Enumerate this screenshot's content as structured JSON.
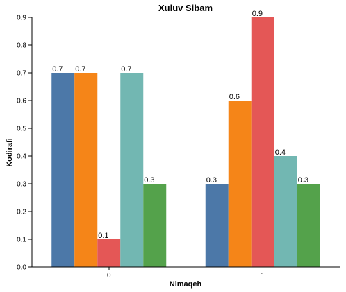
{
  "chart_data": {
    "type": "bar",
    "title": "Xuluv Sibam",
    "xlabel": "Nimaqeh",
    "ylabel": "Kodirafi",
    "categories": [
      "0",
      "1"
    ],
    "ylim": [
      0,
      0.9
    ],
    "yticks": [
      "0.0",
      "0.1",
      "0.2",
      "0.3",
      "0.4",
      "0.5",
      "0.6",
      "0.7",
      "0.8",
      "0.9"
    ],
    "grid": false,
    "data_labels": true,
    "series": [
      {
        "color": "#4c78a8",
        "values": [
          0.7,
          0.3
        ]
      },
      {
        "color": "#f58518",
        "values": [
          0.7,
          0.6
        ]
      },
      {
        "color": "#e45756",
        "values": [
          0.1,
          0.9
        ]
      },
      {
        "color": "#72b7b2",
        "values": [
          0.7,
          0.4
        ]
      },
      {
        "color": "#54a24b",
        "values": [
          0.3,
          0.3
        ]
      }
    ]
  }
}
